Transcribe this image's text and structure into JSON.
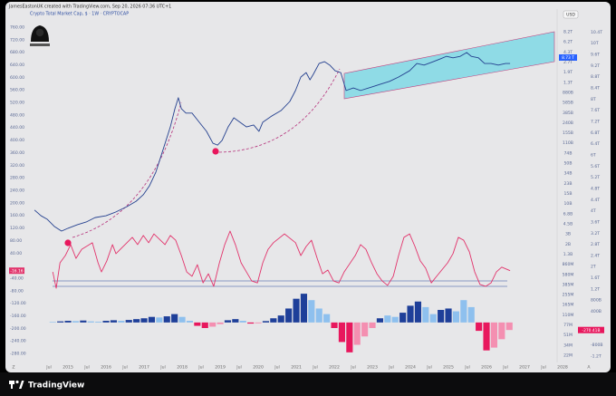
{
  "chart_data": {
    "type": "line",
    "header": "JamesEastonUK created with TradingView.com, Sep 20, 2026 07:36 UTC+1",
    "title": "Crypto Total Market Cap, $ · 1W · CRYPTOCAP",
    "currency": "USD",
    "price_label": "8.73 T",
    "x_left_label": "Z",
    "x_right_label": "A",
    "footer": "TradingView",
    "xlim": [
      2013.57,
      2028.69
    ],
    "xticks": [
      {
        "value": 2014.5,
        "label": "Jul"
      },
      2015,
      {
        "value": 2015.5,
        "label": "Jul"
      },
      2016,
      {
        "value": 2016.5,
        "label": "Jul"
      },
      2017,
      {
        "value": 2017.5,
        "label": "Jul"
      },
      2018,
      {
        "value": 2018.5,
        "label": "Jul"
      },
      2019,
      {
        "value": 2019.5,
        "label": "Jul"
      },
      2020,
      {
        "value": 2020.5,
        "label": "Jul"
      },
      2021,
      {
        "value": 2021.5,
        "label": "Jul"
      },
      2022,
      {
        "value": 2022.5,
        "label": "Jul"
      },
      2023,
      {
        "value": 2023.5,
        "label": "Jul"
      },
      2024,
      {
        "value": 2024.5,
        "label": "Jul"
      },
      2025,
      {
        "value": 2025.5,
        "label": "Jul"
      },
      2026,
      {
        "value": 2026.5,
        "label": "Jul"
      },
      2027,
      {
        "value": 2027.5,
        "label": "Jul"
      },
      2028
    ],
    "ylim": [
      -300,
      780
    ],
    "yticks": [
      {
        "value": 760,
        "label": "760.00"
      },
      {
        "value": 720,
        "label": "720.00"
      },
      {
        "value": 680,
        "label": "680.00"
      },
      {
        "value": 640,
        "label": "640.00"
      },
      {
        "value": 600,
        "label": "600.00"
      },
      {
        "value": 560,
        "label": "560.00"
      },
      {
        "value": 520,
        "label": "520.00"
      },
      {
        "value": 480,
        "label": "480.00"
      },
      {
        "value": 440,
        "label": "440.00"
      },
      {
        "value": 400,
        "label": "400.00"
      },
      {
        "value": 360,
        "label": "360.00"
      },
      {
        "value": 320,
        "label": "320.00"
      },
      {
        "value": 280,
        "label": "280.00"
      },
      {
        "value": 240,
        "label": "240.00"
      },
      {
        "value": 200,
        "label": "200.00"
      },
      {
        "value": 160,
        "label": "160.00"
      },
      {
        "value": 120,
        "label": "120.00"
      },
      {
        "value": 80,
        "label": "80.00"
      },
      {
        "value": 40,
        "label": "40.00"
      },
      {
        "value": -40,
        "label": "-40.00"
      },
      {
        "value": -80,
        "label": "-80.00"
      },
      {
        "value": -120,
        "label": "-120.00"
      },
      {
        "value": -160,
        "label": "-160.00"
      },
      {
        "value": -200,
        "label": "-200.00"
      },
      {
        "value": -240,
        "label": "-240.00"
      },
      {
        "value": -280,
        "label": "-280.00"
      }
    ],
    "y2lim": [
      -1400,
      10900
    ],
    "y2ticks": [
      {
        "value": 10400,
        "label": "10.4T"
      },
      {
        "value": 10000,
        "label": "10T"
      },
      {
        "value": 9600,
        "label": "9.6T"
      },
      {
        "value": 9200,
        "label": "9.2T"
      },
      {
        "value": 8800,
        "label": "8.8T"
      },
      {
        "value": 8400,
        "label": "8.4T"
      },
      {
        "value": 8000,
        "label": "8T"
      },
      {
        "value": 7600,
        "label": "7.6T"
      },
      {
        "value": 7200,
        "label": "7.2T"
      },
      {
        "value": 6800,
        "label": "6.8T"
      },
      {
        "value": 6400,
        "label": "6.4T"
      },
      {
        "value": 6000,
        "label": "6T"
      },
      {
        "value": 5600,
        "label": "5.6T"
      },
      {
        "value": 5200,
        "label": "5.2T"
      },
      {
        "value": 4800,
        "label": "4.8T"
      },
      {
        "value": 4400,
        "label": "4.4T"
      },
      {
        "value": 4000,
        "label": "4T"
      },
      {
        "value": 3600,
        "label": "3.6T"
      },
      {
        "value": 3200,
        "label": "3.2T"
      },
      {
        "value": 2800,
        "label": "2.8T"
      },
      {
        "value": 2400,
        "label": "2.4T"
      },
      {
        "value": 2000,
        "label": "2T"
      },
      {
        "value": 1600,
        "label": "1.6T"
      },
      {
        "value": 1200,
        "label": "1.2T"
      },
      {
        "value": 800,
        "label": "800B"
      },
      {
        "value": 400,
        "label": "400B"
      },
      {
        "value": -800,
        "label": "-800B"
      },
      {
        "value": -1200,
        "label": "-1.2T"
      }
    ],
    "inner_scale": [
      "8.2T",
      "6.2T",
      "4.3T",
      "2.7T",
      "1.9T",
      "1.3T",
      "880B",
      "585B",
      "385B",
      "240B",
      "155B",
      "110B",
      "74B",
      "50B",
      "34B",
      "23B",
      "15B",
      "10B",
      "6.8B",
      "4.5B",
      "3B",
      "2B",
      "1.3B",
      "860M",
      "580M",
      "385M",
      "255M",
      "165M",
      "110M",
      "77M",
      "51M",
      "34M",
      "22M"
    ],
    "series": [
      {
        "color": "#24408f",
        "x": [
          2014.12,
          2014.29,
          2014.45,
          2014.64,
          2014.83,
          2015,
          2015.24,
          2015.48,
          2015.71,
          2016,
          2016.26,
          2016.55,
          2016.79,
          2016.98,
          2017.14,
          2017.31,
          2017.5,
          2017.69,
          2017.81,
          2017.9,
          2017.98,
          2018.1,
          2018.26,
          2018.45,
          2018.64,
          2018.81,
          2018.93,
          2019.05,
          2019.21,
          2019.36,
          2019.52,
          2019.69,
          2019.88,
          2020.02,
          2020.12,
          2020.36,
          2020.6,
          2020.83,
          2020.98,
          2021.12,
          2021.26,
          2021.36,
          2021.45,
          2021.6,
          2021.74,
          2021.88,
          2022.02,
          2022.17,
          2022.31,
          2022.5,
          2022.69,
          2022.98,
          2023.21,
          2023.45,
          2023.69,
          2023.98,
          2024.17,
          2024.36,
          2024.6,
          2024.79,
          2024.95,
          2025.12,
          2025.31,
          2025.48,
          2025.6,
          2025.79,
          2025.95,
          2026.12,
          2026.31,
          2026.5,
          2026.62
        ],
        "values": [
          177,
          159,
          148,
          125,
          110,
          119,
          130,
          139,
          153,
          159,
          171,
          188,
          205,
          226,
          254,
          298,
          370,
          442,
          500,
          535,
          500,
          486,
          486,
          457,
          428,
          390,
          384,
          399,
          442,
          471,
          457,
          442,
          448,
          428,
          457,
          477,
          494,
          523,
          558,
          601,
          615,
          592,
          610,
          644,
          650,
          639,
          621,
          615,
          558,
          566,
          558,
          569,
          578,
          587,
          601,
          621,
          644,
          639,
          650,
          659,
          667,
          662,
          667,
          679,
          667,
          662,
          644,
          644,
          639,
          644,
          644
        ]
      },
      {
        "color": "#e2336b",
        "x": [
          2014.6,
          2014.69,
          2014.79,
          2014.93,
          2015.07,
          2015.21,
          2015.36,
          2015.64,
          2015.79,
          2015.88,
          2016.02,
          2016.17,
          2016.26,
          2016.55,
          2016.69,
          2016.83,
          2016.98,
          2017.12,
          2017.26,
          2017.55,
          2017.69,
          2017.83,
          2017.98,
          2018.12,
          2018.26,
          2018.4,
          2018.55,
          2018.69,
          2018.83,
          2018.98,
          2019.12,
          2019.26,
          2019.4,
          2019.55,
          2019.69,
          2019.83,
          2019.98,
          2020.12,
          2020.26,
          2020.4,
          2020.69,
          2020.98,
          2021.12,
          2021.26,
          2021.4,
          2021.55,
          2021.69,
          2021.83,
          2021.98,
          2022.12,
          2022.26,
          2022.55,
          2022.69,
          2022.83,
          2022.98,
          2023.12,
          2023.26,
          2023.4,
          2023.55,
          2023.69,
          2023.83,
          2023.98,
          2024.12,
          2024.26,
          2024.4,
          2024.55,
          2024.69,
          2024.98,
          2025.12,
          2025.26,
          2025.4,
          2025.55,
          2025.69,
          2025.83,
          2025.98,
          2026.12,
          2026.26,
          2026.4,
          2026.62
        ],
        "values": [
          -20,
          -72,
          9,
          32,
          67,
          23,
          52,
          73,
          9,
          -20,
          15,
          67,
          38,
          73,
          90,
          67,
          96,
          73,
          101,
          67,
          96,
          81,
          32,
          -20,
          -34,
          3,
          -55,
          -26,
          -66,
          9,
          67,
          110,
          67,
          9,
          -20,
          -49,
          -55,
          9,
          52,
          73,
          101,
          73,
          32,
          61,
          81,
          23,
          -26,
          -14,
          -49,
          -55,
          -20,
          32,
          67,
          52,
          9,
          -26,
          -49,
          -63,
          -34,
          32,
          90,
          101,
          61,
          15,
          -8,
          -55,
          -34,
          9,
          38,
          90,
          81,
          44,
          -20,
          -60,
          -66,
          -55,
          -20,
          -5,
          -16.16
        ],
        "last_value_label": "-16.16"
      }
    ],
    "histogram": {
      "axis": "y2",
      "x": [
        2014.6,
        2014.8,
        2015.0,
        2015.2,
        2015.4,
        2015.6,
        2015.8,
        2016.0,
        2016.2,
        2016.4,
        2016.6,
        2016.8,
        2017.0,
        2017.2,
        2017.4,
        2017.6,
        2017.8,
        2018.0,
        2018.2,
        2018.4,
        2018.6,
        2018.8,
        2019.0,
        2019.2,
        2019.4,
        2019.6,
        2019.8,
        2020.0,
        2020.2,
        2020.4,
        2020.6,
        2020.8,
        2021.0,
        2021.2,
        2021.4,
        2021.6,
        2021.8,
        2022.0,
        2022.2,
        2022.4,
        2022.6,
        2022.8,
        2023.0,
        2023.2,
        2023.4,
        2023.6,
        2023.8,
        2024.0,
        2024.2,
        2024.4,
        2024.6,
        2024.8,
        2025.0,
        2025.2,
        2025.4,
        2025.6,
        2025.8,
        2026.0,
        2026.2,
        2026.4,
        2026.6
      ],
      "values": [
        20,
        40,
        60,
        50,
        70,
        40,
        30,
        60,
        80,
        60,
        90,
        120,
        150,
        200,
        180,
        220,
        300,
        200,
        60,
        -120,
        -200,
        -150,
        -60,
        80,
        120,
        60,
        -40,
        -30,
        50,
        150,
        250,
        500,
        850,
        1030,
        800,
        500,
        300,
        -200,
        -700,
        -1070,
        -800,
        -500,
        -200,
        150,
        250,
        200,
        350,
        600,
        750,
        550,
        300,
        450,
        500,
        400,
        800,
        550,
        -300,
        -1000,
        -900,
        -600,
        -270.41
      ],
      "colors": [
        "#8ec0ee",
        "#1e3f99",
        "#1e3f99",
        "#8ec0ee",
        "#1e3f99",
        "#8ec0ee",
        "#8ec0ee",
        "#1e3f99",
        "#1e3f99",
        "#8ec0ee",
        "#1e3f99",
        "#1e3f99",
        "#1e3f99",
        "#1e3f99",
        "#8ec0ee",
        "#1e3f99",
        "#1e3f99",
        "#8ec0ee",
        "#8ec0ee",
        "#e8175d",
        "#e8175d",
        "#f48fb1",
        "#f48fb1",
        "#1e3f99",
        "#1e3f99",
        "#8ec0ee",
        "#e8175d",
        "#f48fb1",
        "#1e3f99",
        "#1e3f99",
        "#1e3f99",
        "#1e3f99",
        "#1e3f99",
        "#1e3f99",
        "#8ec0ee",
        "#8ec0ee",
        "#8ec0ee",
        "#e8175d",
        "#e8175d",
        "#e8175d",
        "#f48fb1",
        "#f48fb1",
        "#f48fb1",
        "#1e3f99",
        "#8ec0ee",
        "#8ec0ee",
        "#1e3f99",
        "#1e3f99",
        "#1e3f99",
        "#8ec0ee",
        "#8ec0ee",
        "#1e3f99",
        "#1e3f99",
        "#8ec0ee",
        "#8ec0ee",
        "#8ec0ee",
        "#e8175d",
        "#e8175d",
        "#f48fb1",
        "#f48fb1",
        "#f48fb1"
      ],
      "last_value_label": "-270.41B"
    }
  }
}
